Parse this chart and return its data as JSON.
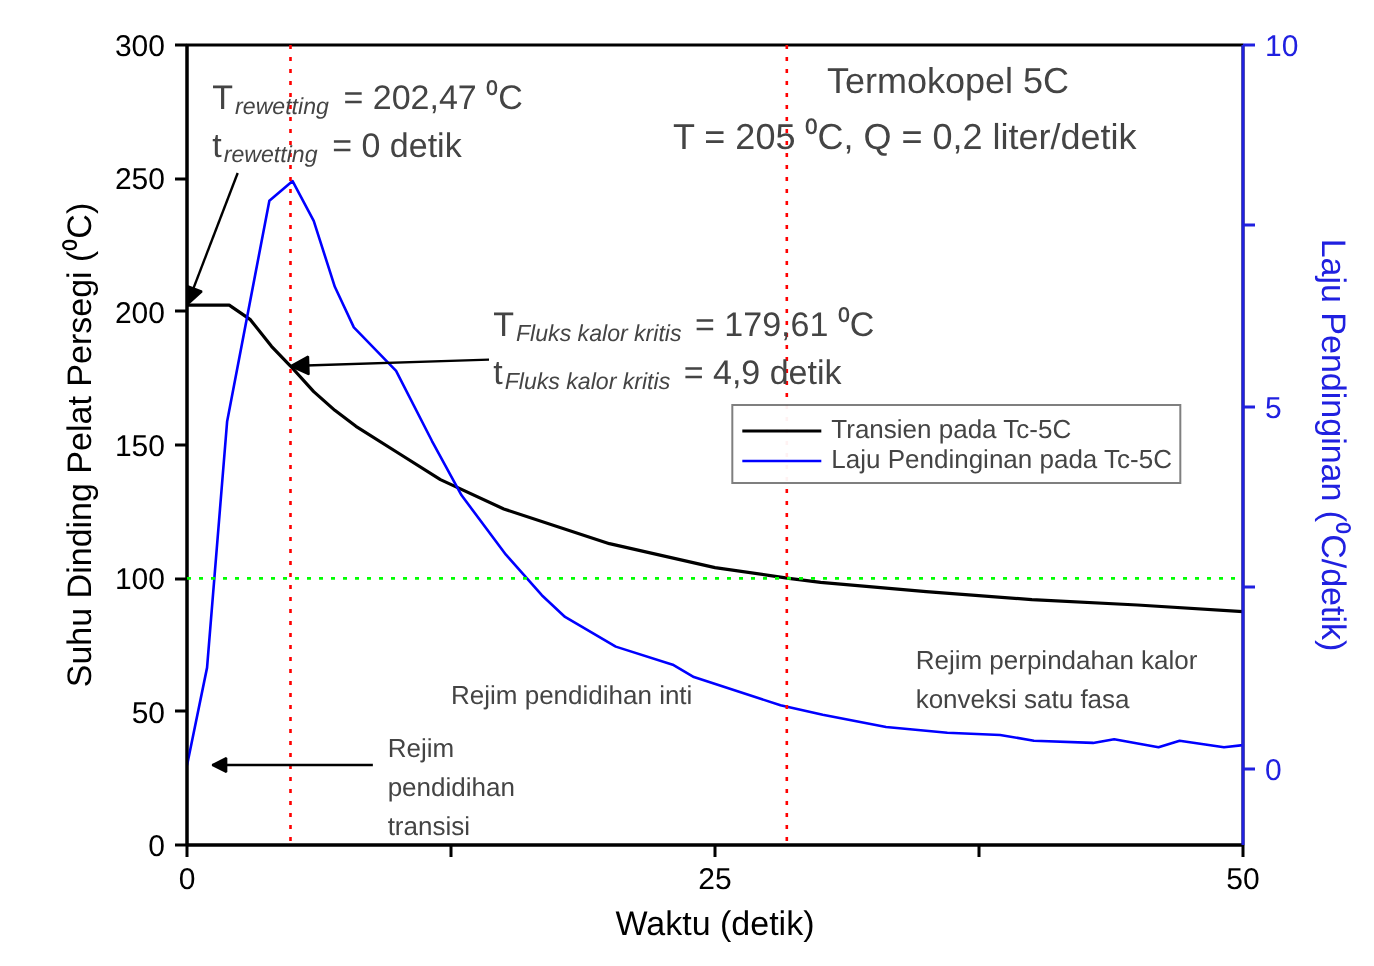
{
  "chart_data": {
    "type": "line",
    "title": "Termokopel 5C",
    "subtitle": "T = 205 ⁰C, Q = 0,2 liter/detik",
    "xlabel": "Waktu (detik)",
    "ylabel": "Suhu Dinding Pelat Persegi (⁰C)",
    "y2label": "Laju Pendinginan (⁰C/detik)",
    "xlim": [
      0,
      50
    ],
    "xticks": [
      0,
      {
        "value": 12.5,
        "label": null
      },
      25,
      {
        "value": 37.5,
        "label": null
      },
      50
    ],
    "ylim": [
      0,
      300
    ],
    "yticks": [
      0,
      50,
      100,
      150,
      200,
      250,
      300
    ],
    "y2lim": [
      -1.05,
      10
    ],
    "y2ticks": [
      0,
      {
        "value": 2.5,
        "label": null
      },
      5,
      {
        "value": 7.5,
        "label": null
      },
      10
    ],
    "grid": false,
    "legend": "right",
    "line_style": "solid",
    "marker": "none",
    "series": [
      {
        "name": "Transien pada Tc-5C",
        "color": "#000000",
        "x": [
          0,
          2,
          3,
          4,
          4.9,
          6,
          7,
          8,
          10,
          12,
          15,
          20,
          25,
          28.5,
          30,
          35,
          40,
          45,
          50
        ],
        "values": [
          202.47,
          202.47,
          197,
          187,
          179.61,
          170,
          163,
          157,
          147,
          137,
          126,
          113,
          104,
          100,
          98.5,
          95,
          92,
          90,
          87.5
        ]
      },
      {
        "name": "Laju Pendinginan pada Tc-5C",
        "color": "#0000ff",
        "axis": "y2",
        "x": [
          0,
          0.95,
          1.9,
          3.9,
          5.0,
          6.0,
          7.0,
          7.9,
          9.9,
          11.6,
          13.0,
          15.1,
          16.8,
          17.9,
          20.3,
          23.0,
          24.0,
          28.1,
          30.1,
          33.1,
          36.0,
          38.5,
          40.1,
          42.9,
          43.9,
          46.0,
          47.0,
          49.1,
          50
        ],
        "values": [
          0.05,
          1.4,
          4.8,
          7.85,
          8.12,
          7.57,
          6.66,
          6.1,
          5.5,
          4.53,
          3.78,
          2.96,
          2.4,
          2.1,
          1.69,
          1.44,
          1.27,
          0.88,
          0.75,
          0.58,
          0.5,
          0.47,
          0.39,
          0.36,
          0.41,
          0.3,
          0.39,
          0.3,
          0.33
        ]
      }
    ],
    "ref_lines": [
      {
        "axis": "y",
        "value": 100,
        "label": null,
        "color": "#00ff00",
        "line_style": "dotted"
      },
      {
        "axis": "x",
        "value": 4.9,
        "label": null,
        "color": "#ff0000",
        "line_style": "dotted"
      },
      {
        "axis": "x",
        "value": 28.4,
        "label": null,
        "color": "#ff0000",
        "line_style": "dotted"
      }
    ],
    "annotations": [
      "T$_{rewetting}$ = 202,47 ⁰C",
      {
        "text": "t$_{rewetting}$ = 0 detik",
        "x": 0,
        "y": 202.47
      },
      "T$_{Fluks kalor kritis}$ = 179,61 ⁰C",
      {
        "text": "t$_{Fluks kalor kritis}$ = 4,9 detik",
        "x": 4.9,
        "y": 179.61
      },
      "Rejim pendidihan inti",
      "Rejim\npendidihan\ntransisi",
      "Rejim perpindahan kalor\nkonveksi satu fasa"
    ]
  }
}
